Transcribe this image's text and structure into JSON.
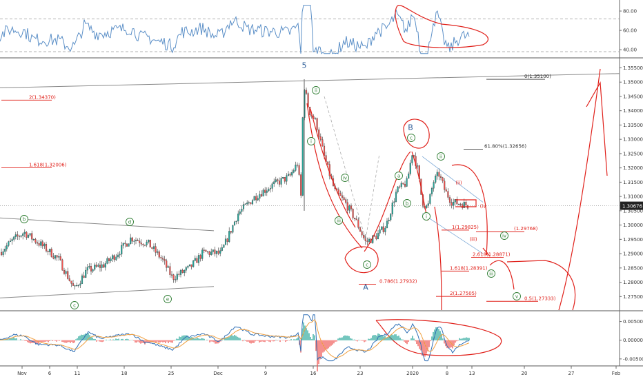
{
  "chart_data": {
    "type": "line",
    "panes": [
      "rsi",
      "price",
      "macd"
    ],
    "rsi": {
      "ylim": [
        33,
        90
      ],
      "ticks": [
        "80.00",
        "60.00",
        "40.00"
      ],
      "tick_values": [
        80,
        60,
        40
      ],
      "series_color": "#5b8fc7"
    },
    "price": {
      "ylim": [
        1.2705,
        1.358
      ],
      "ticks": [
        "1.35500",
        "1.35000",
        "1.34500",
        "1.34000",
        "1.33500",
        "1.33000",
        "1.32500",
        "1.32000",
        "1.31500",
        "1.31000",
        "1.30500",
        "1.30000",
        "1.29500",
        "1.29000",
        "1.28500",
        "1.28000",
        "1.27500"
      ],
      "tick_values": [
        1.355,
        1.35,
        1.345,
        1.34,
        1.335,
        1.33,
        1.325,
        1.32,
        1.315,
        1.31,
        1.305,
        1.3,
        1.295,
        1.29,
        1.285,
        1.28,
        1.275
      ],
      "current_price": "1.30676",
      "current_value": 1.30676,
      "up_color": "#26a69a",
      "down_color": "#ef5350",
      "markup_color": "#e0201a",
      "fib_levels": [
        {
          "label": "2(1.34370)",
          "value": 1.3437,
          "color": "#e0201a"
        },
        {
          "label": "1.618(1.32006)",
          "value": 1.32006,
          "color": "#e0201a"
        },
        {
          "label": "0(1.35100)",
          "value": 1.351,
          "color": "#333333"
        },
        {
          "label": "61.80%(1.32656)",
          "value": 1.32656,
          "color": "#333333"
        },
        {
          "label": "1(1.29825)",
          "value": 1.29825,
          "color": "#e0201a"
        },
        {
          "label": "(1.29768)",
          "value": 1.29768,
          "color": "#e0201a"
        },
        {
          "label": "2.618(1.28871)",
          "value": 1.28871,
          "color": "#e0201a"
        },
        {
          "label": "1.618(1.28391)",
          "value": 1.28391,
          "color": "#e0201a"
        },
        {
          "label": "0.786(1.27932)",
          "value": 1.27932,
          "color": "#e0201a"
        },
        {
          "label": "2(1.27505)",
          "value": 1.27505,
          "color": "#e0201a"
        },
        {
          "label": "0.5(1.27333)",
          "value": 1.27333,
          "color": "#e0201a"
        }
      ],
      "wave_labels": [
        "5",
        "A",
        "B",
        "i",
        "ii",
        "iii",
        "iv",
        "a",
        "b",
        "c",
        "d",
        "e",
        "v"
      ]
    },
    "macd": {
      "ylim": [
        -0.0065,
        0.0075
      ],
      "ticks": [
        "0.00500",
        "0.00000",
        "-0.00500"
      ],
      "tick_values": [
        0.005,
        0.0,
        -0.005
      ],
      "macd_color": "#2f6fb5",
      "signal_color": "#f0a040"
    },
    "x_ticks": [
      "Nov",
      "6",
      "11",
      "18",
      "25",
      "Dec",
      "9",
      "16",
      "23",
      "2020",
      "8",
      "13",
      "20",
      "27",
      "Feb"
    ]
  }
}
